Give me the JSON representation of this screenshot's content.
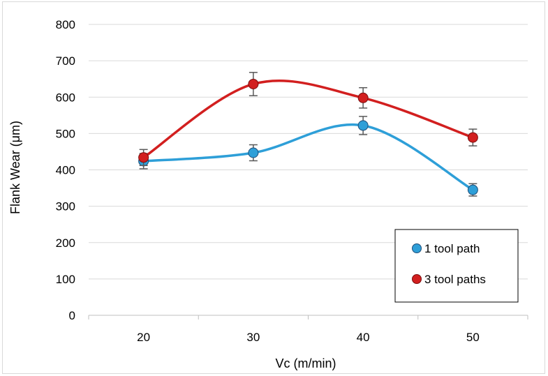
{
  "chart_data": {
    "type": "line",
    "categories": [
      "20",
      "30",
      "40",
      "50"
    ],
    "x": [
      20,
      30,
      40,
      50
    ],
    "xlabel": "Vc (m/min)",
    "ylabel": "Flank Wear (μm)",
    "ylim": [
      0,
      800
    ],
    "yticks": [
      "0",
      "100",
      "200",
      "300",
      "400",
      "500",
      "600",
      "700",
      "800"
    ],
    "grid": "horizontal",
    "smooth": true,
    "error_bars": true,
    "legend_position": "bottom-right",
    "series": [
      {
        "name": "1 tool path",
        "color": "#2e9fd8",
        "values": [
          424,
          447,
          522,
          345
        ],
        "errors": [
          21,
          22,
          25,
          17
        ]
      },
      {
        "name": "3 tool paths",
        "color": "#d21f1f",
        "values": [
          434,
          636,
          598,
          489
        ],
        "errors": [
          22,
          32,
          28,
          23
        ]
      }
    ]
  }
}
